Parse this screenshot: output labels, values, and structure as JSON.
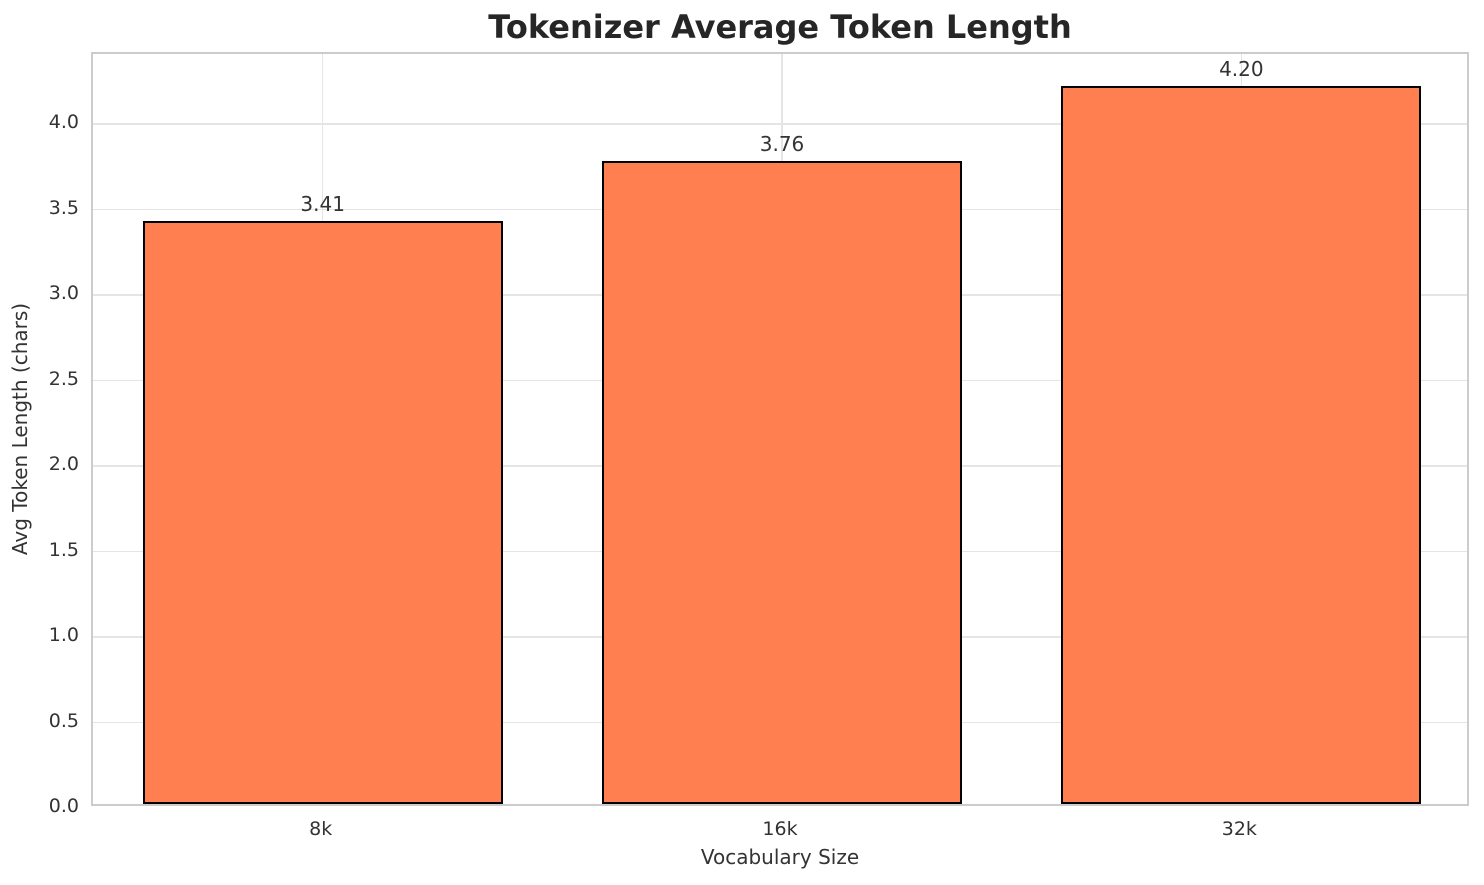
{
  "chart_data": {
    "type": "bar",
    "title": "Tokenizer Average Token Length",
    "xlabel": "Vocabulary Size",
    "ylabel": "Avg Token Length (chars)",
    "categories": [
      "8k",
      "16k",
      "32k"
    ],
    "values": [
      3.41,
      3.76,
      4.2
    ],
    "value_labels": [
      "3.41",
      "3.76",
      "4.20"
    ],
    "yticks": [
      0.0,
      0.5,
      1.0,
      1.5,
      2.0,
      2.5,
      3.0,
      3.5,
      4.0
    ],
    "ylim": [
      0,
      4.41
    ],
    "grid": "horizontal gridlines at y ticks, vertical gridlines at bar centers",
    "legend_position": "none",
    "bar_color": "#FF7F50",
    "bar_edge_color": "#000000",
    "bar_width_fraction": 0.784
  },
  "colors": {
    "background": "#ffffff",
    "spine": "#cccccc",
    "gridline": "#e5e5e5",
    "title_text": "#262626",
    "tick_text": "#333333"
  }
}
